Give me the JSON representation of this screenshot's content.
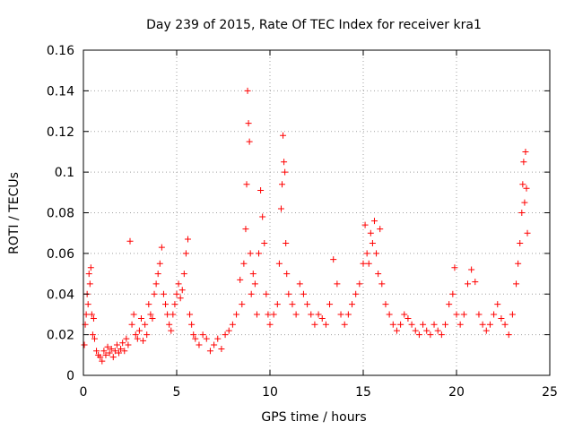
{
  "chart_data": {
    "type": "scatter",
    "title": "Day 239 of 2015, Rate Of TEC Index for receiver kra1",
    "xlabel": "GPS time / hours",
    "ylabel": "ROTI / TECUs",
    "xlim": [
      0,
      25
    ],
    "ylim": [
      0,
      0.16
    ],
    "xticks": [
      0,
      5,
      10,
      15,
      20,
      25
    ],
    "yticks": [
      0,
      0.02,
      0.04,
      0.06,
      0.08,
      0.1,
      0.12,
      0.14,
      0.16
    ],
    "xtick_labels": [
      "0",
      "5",
      "10",
      "15",
      "20",
      "25"
    ],
    "ytick_labels": [
      "0",
      "0.02",
      "0.04",
      "0.06",
      "0.08",
      "0.1",
      "0.12",
      "0.14",
      "0.16"
    ],
    "grid": true,
    "marker": "+",
    "color": "#ff0000",
    "points": [
      [
        0.05,
        0.015
      ],
      [
        0.1,
        0.025
      ],
      [
        0.15,
        0.03
      ],
      [
        0.2,
        0.04
      ],
      [
        0.25,
        0.035
      ],
      [
        0.3,
        0.05
      ],
      [
        0.35,
        0.045
      ],
      [
        0.4,
        0.053
      ],
      [
        0.45,
        0.03
      ],
      [
        0.5,
        0.02
      ],
      [
        0.55,
        0.028
      ],
      [
        0.6,
        0.018
      ],
      [
        0.7,
        0.012
      ],
      [
        0.8,
        0.01
      ],
      [
        0.9,
        0.009
      ],
      [
        1.0,
        0.007
      ],
      [
        1.1,
        0.012
      ],
      [
        1.2,
        0.01
      ],
      [
        1.3,
        0.014
      ],
      [
        1.4,
        0.011
      ],
      [
        1.5,
        0.013
      ],
      [
        1.6,
        0.009
      ],
      [
        1.7,
        0.012
      ],
      [
        1.8,
        0.015
      ],
      [
        1.9,
        0.011
      ],
      [
        2.0,
        0.013
      ],
      [
        2.1,
        0.016
      ],
      [
        2.2,
        0.012
      ],
      [
        2.3,
        0.018
      ],
      [
        2.4,
        0.015
      ],
      [
        2.5,
        0.066
      ],
      [
        2.6,
        0.025
      ],
      [
        2.7,
        0.03
      ],
      [
        2.8,
        0.02
      ],
      [
        2.9,
        0.018
      ],
      [
        3.0,
        0.022
      ],
      [
        3.1,
        0.028
      ],
      [
        3.2,
        0.017
      ],
      [
        3.3,
        0.025
      ],
      [
        3.4,
        0.02
      ],
      [
        3.5,
        0.035
      ],
      [
        3.6,
        0.03
      ],
      [
        3.7,
        0.028
      ],
      [
        3.8,
        0.04
      ],
      [
        3.9,
        0.045
      ],
      [
        4.0,
        0.05
      ],
      [
        4.1,
        0.055
      ],
      [
        4.2,
        0.063
      ],
      [
        4.3,
        0.04
      ],
      [
        4.4,
        0.035
      ],
      [
        4.5,
        0.03
      ],
      [
        4.6,
        0.025
      ],
      [
        4.7,
        0.022
      ],
      [
        4.8,
        0.03
      ],
      [
        4.9,
        0.035
      ],
      [
        5.0,
        0.04
      ],
      [
        5.1,
        0.045
      ],
      [
        5.2,
        0.038
      ],
      [
        5.3,
        0.042
      ],
      [
        5.4,
        0.05
      ],
      [
        5.5,
        0.06
      ],
      [
        5.6,
        0.067
      ],
      [
        5.7,
        0.03
      ],
      [
        5.8,
        0.025
      ],
      [
        5.9,
        0.02
      ],
      [
        6.0,
        0.018
      ],
      [
        6.2,
        0.015
      ],
      [
        6.4,
        0.02
      ],
      [
        6.6,
        0.018
      ],
      [
        6.8,
        0.012
      ],
      [
        7.0,
        0.015
      ],
      [
        7.2,
        0.018
      ],
      [
        7.4,
        0.013
      ],
      [
        7.6,
        0.02
      ],
      [
        7.8,
        0.022
      ],
      [
        8.0,
        0.025
      ],
      [
        8.2,
        0.03
      ],
      [
        8.4,
        0.047
      ],
      [
        8.5,
        0.035
      ],
      [
        8.6,
        0.055
      ],
      [
        8.7,
        0.072
      ],
      [
        8.75,
        0.094
      ],
      [
        8.8,
        0.14
      ],
      [
        8.85,
        0.124
      ],
      [
        8.9,
        0.115
      ],
      [
        8.95,
        0.06
      ],
      [
        9.0,
        0.04
      ],
      [
        9.1,
        0.05
      ],
      [
        9.2,
        0.045
      ],
      [
        9.3,
        0.03
      ],
      [
        9.4,
        0.06
      ],
      [
        9.5,
        0.091
      ],
      [
        9.6,
        0.078
      ],
      [
        9.7,
        0.065
      ],
      [
        9.8,
        0.04
      ],
      [
        9.9,
        0.03
      ],
      [
        10.0,
        0.025
      ],
      [
        10.2,
        0.03
      ],
      [
        10.4,
        0.035
      ],
      [
        10.5,
        0.055
      ],
      [
        10.6,
        0.082
      ],
      [
        10.65,
        0.094
      ],
      [
        10.7,
        0.118
      ],
      [
        10.75,
        0.105
      ],
      [
        10.8,
        0.1
      ],
      [
        10.85,
        0.065
      ],
      [
        10.9,
        0.05
      ],
      [
        11.0,
        0.04
      ],
      [
        11.2,
        0.035
      ],
      [
        11.4,
        0.03
      ],
      [
        11.6,
        0.045
      ],
      [
        11.8,
        0.04
      ],
      [
        12.0,
        0.035
      ],
      [
        12.2,
        0.03
      ],
      [
        12.4,
        0.025
      ],
      [
        12.6,
        0.03
      ],
      [
        12.8,
        0.028
      ],
      [
        13.0,
        0.025
      ],
      [
        13.2,
        0.035
      ],
      [
        13.4,
        0.057
      ],
      [
        13.6,
        0.045
      ],
      [
        13.8,
        0.03
      ],
      [
        14.0,
        0.025
      ],
      [
        14.2,
        0.03
      ],
      [
        14.4,
        0.035
      ],
      [
        14.6,
        0.04
      ],
      [
        14.8,
        0.045
      ],
      [
        15.0,
        0.055
      ],
      [
        15.1,
        0.074
      ],
      [
        15.2,
        0.06
      ],
      [
        15.3,
        0.055
      ],
      [
        15.4,
        0.07
      ],
      [
        15.5,
        0.065
      ],
      [
        15.6,
        0.076
      ],
      [
        15.7,
        0.06
      ],
      [
        15.8,
        0.05
      ],
      [
        15.9,
        0.072
      ],
      [
        16.0,
        0.045
      ],
      [
        16.2,
        0.035
      ],
      [
        16.4,
        0.03
      ],
      [
        16.6,
        0.025
      ],
      [
        16.8,
        0.022
      ],
      [
        17.0,
        0.025
      ],
      [
        17.2,
        0.03
      ],
      [
        17.4,
        0.028
      ],
      [
        17.6,
        0.025
      ],
      [
        17.8,
        0.022
      ],
      [
        18.0,
        0.02
      ],
      [
        18.2,
        0.025
      ],
      [
        18.4,
        0.022
      ],
      [
        18.6,
        0.02
      ],
      [
        18.8,
        0.025
      ],
      [
        19.0,
        0.022
      ],
      [
        19.2,
        0.02
      ],
      [
        19.4,
        0.025
      ],
      [
        19.6,
        0.035
      ],
      [
        19.8,
        0.04
      ],
      [
        19.9,
        0.053
      ],
      [
        20.0,
        0.03
      ],
      [
        20.2,
        0.025
      ],
      [
        20.4,
        0.03
      ],
      [
        20.6,
        0.045
      ],
      [
        20.8,
        0.052
      ],
      [
        21.0,
        0.046
      ],
      [
        21.2,
        0.03
      ],
      [
        21.4,
        0.025
      ],
      [
        21.6,
        0.022
      ],
      [
        21.8,
        0.025
      ],
      [
        22.0,
        0.03
      ],
      [
        22.2,
        0.035
      ],
      [
        22.4,
        0.028
      ],
      [
        22.6,
        0.025
      ],
      [
        22.8,
        0.02
      ],
      [
        23.0,
        0.03
      ],
      [
        23.2,
        0.045
      ],
      [
        23.3,
        0.055
      ],
      [
        23.4,
        0.065
      ],
      [
        23.5,
        0.08
      ],
      [
        23.55,
        0.094
      ],
      [
        23.6,
        0.105
      ],
      [
        23.65,
        0.085
      ],
      [
        23.7,
        0.11
      ],
      [
        23.75,
        0.092
      ],
      [
        23.8,
        0.07
      ]
    ]
  }
}
